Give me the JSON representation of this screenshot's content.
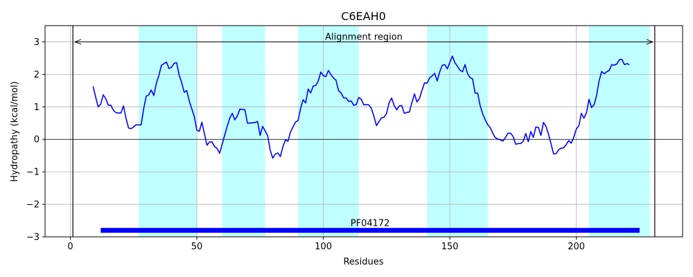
{
  "chart_data": {
    "type": "line",
    "title": "C6EAH0",
    "xlabel": "Residues",
    "ylabel": "Hydropathy (kcal/mol)",
    "xlim": [
      -10,
      242
    ],
    "ylim": [
      -3,
      3.5
    ],
    "xticks": [
      0,
      50,
      100,
      150,
      200
    ],
    "yticks": [
      -3,
      -2,
      -1,
      0,
      1,
      2,
      3
    ],
    "xtick_labels": [
      "0",
      "50",
      "100",
      "150",
      "200"
    ],
    "ytick_labels": [
      "−3",
      "−2",
      "−1",
      "0",
      "1",
      "2",
      "3"
    ],
    "grid": true,
    "zero_line": true,
    "colors": {
      "line": "#0000ff",
      "band": "#c0ffff",
      "domain_bar": "#0000ff",
      "frame": "#000000",
      "grid": "#b0b0b0"
    },
    "shaded_regions": [
      [
        27,
        50
      ],
      [
        60,
        77
      ],
      [
        90,
        114
      ],
      [
        141,
        165
      ],
      [
        205,
        229
      ]
    ],
    "alignment_region": {
      "label": "Alignment region",
      "start": 1,
      "end": 231,
      "y": 3
    },
    "domain": {
      "label": "PF04172",
      "start": 12,
      "end": 225,
      "y": -2.8
    },
    "series": [
      {
        "x": [
          9,
          10,
          11,
          12,
          13,
          14,
          15,
          16,
          17,
          18,
          19,
          20,
          21,
          22,
          23,
          24,
          25,
          26,
          27,
          28,
          29,
          30,
          31,
          32,
          33,
          34,
          35,
          36,
          37,
          38,
          39,
          40,
          41,
          42,
          43,
          44,
          45,
          46,
          47,
          48,
          49,
          50,
          51,
          52,
          53,
          54,
          55,
          56,
          57,
          58,
          59,
          60,
          61,
          62,
          63,
          64,
          65,
          66,
          67,
          68,
          69,
          70,
          71,
          72,
          73,
          74,
          75,
          76,
          77,
          78,
          79,
          80,
          81,
          82,
          83,
          84,
          85,
          86,
          87,
          88,
          89,
          90,
          91,
          92,
          93,
          94,
          95,
          96,
          97,
          98,
          99,
          100,
          101,
          102,
          103,
          104,
          105,
          106,
          107,
          108,
          109,
          110,
          111,
          112,
          113,
          114,
          115,
          116,
          117,
          118,
          119,
          120,
          121,
          122,
          123,
          124,
          125,
          126,
          127,
          128,
          129,
          130,
          131,
          132,
          133,
          134,
          135,
          136,
          137,
          138,
          139,
          140,
          141,
          142,
          143,
          144,
          145,
          146,
          147,
          148,
          149,
          150,
          151,
          152,
          153,
          154,
          155,
          156,
          157,
          158,
          159,
          160,
          161,
          162,
          163,
          164,
          165,
          166,
          167,
          168,
          169,
          170,
          171,
          172,
          173,
          174,
          175,
          176,
          177,
          178,
          179,
          180,
          181,
          182,
          183,
          184,
          185,
          186,
          187,
          188,
          189,
          190,
          191,
          192,
          193,
          194,
          195,
          196,
          197,
          198,
          199,
          200,
          201,
          202,
          203,
          204,
          205,
          206,
          207,
          208,
          209,
          210,
          211,
          212,
          213,
          214,
          215,
          216,
          217,
          218,
          219,
          220,
          221
        ],
        "values": [
          1.63,
          1.3,
          1.0,
          1.08,
          1.37,
          1.25,
          1.05,
          1.05,
          0.9,
          0.82,
          0.81,
          0.81,
          1.03,
          0.65,
          0.35,
          0.33,
          0.38,
          0.45,
          0.44,
          0.45,
          0.95,
          1.33,
          1.37,
          1.52,
          1.35,
          1.72,
          1.97,
          2.28,
          2.33,
          2.38,
          2.18,
          2.22,
          2.34,
          2.36,
          1.98,
          1.75,
          1.45,
          1.5,
          1.18,
          0.94,
          0.7,
          0.28,
          0.25,
          0.53,
          0.17,
          -0.18,
          -0.08,
          -0.08,
          -0.22,
          -0.28,
          -0.43,
          -0.15,
          0.13,
          0.4,
          0.65,
          0.8,
          0.6,
          0.72,
          0.93,
          0.92,
          0.91,
          0.5,
          0.5,
          0.51,
          0.52,
          0.55,
          0.12,
          0.4,
          0.26,
          0.11,
          -0.33,
          -0.58,
          -0.45,
          -0.42,
          -0.53,
          -0.23,
          -0.02,
          -0.06,
          0.22,
          0.38,
          0.53,
          0.58,
          0.95,
          1.22,
          1.12,
          1.55,
          1.43,
          1.64,
          1.66,
          1.8,
          2.07,
          1.96,
          1.93,
          2.12,
          1.99,
          1.89,
          1.82,
          1.5,
          1.43,
          1.28,
          1.27,
          1.17,
          1.18,
          1.05,
          1.07,
          1.29,
          1.23,
          1.06,
          1.07,
          1.06,
          0.95,
          0.7,
          0.42,
          0.55,
          0.66,
          0.68,
          0.8,
          1.13,
          1.27,
          1.04,
          0.91,
          1.03,
          1.04,
          0.8,
          0.83,
          0.84,
          1.13,
          1.4,
          1.15,
          1.26,
          1.51,
          1.74,
          1.73,
          1.89,
          1.95,
          2.03,
          1.8,
          2.08,
          2.28,
          2.3,
          2.17,
          2.37,
          2.56,
          2.36,
          2.25,
          2.13,
          2.08,
          2.3,
          2.02,
          1.9,
          1.86,
          1.42,
          1.42,
          1.03,
          0.78,
          0.6,
          0.45,
          0.36,
          0.18,
          0.05,
          0.01,
          -0.02,
          -0.05,
          0.06,
          0.19,
          0.19,
          0.09,
          -0.15,
          -0.13,
          -0.13,
          -0.06,
          0.18,
          -0.07,
          0.24,
          0.06,
          0.38,
          0.37,
          0.12,
          0.52,
          0.4,
          0.16,
          -0.14,
          -0.45,
          -0.44,
          -0.32,
          -0.27,
          -0.26,
          -0.16,
          -0.04,
          -0.12,
          0.07,
          0.32,
          0.42,
          0.8,
          0.65,
          0.82,
          1.23,
          0.98,
          1.06,
          1.35,
          1.8,
          2.09,
          2.02,
          2.08,
          2.12,
          2.3,
          2.28,
          2.32,
          2.45,
          2.46,
          2.3,
          2.33,
          2.3
        ]
      }
    ]
  }
}
